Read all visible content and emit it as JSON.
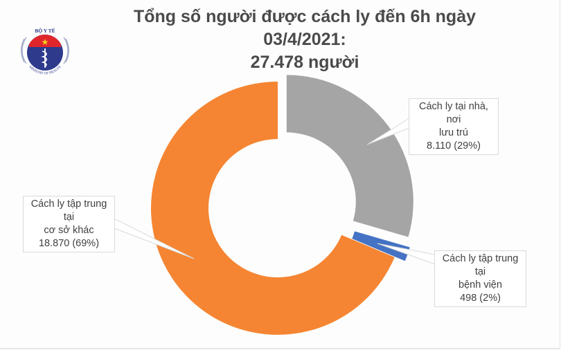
{
  "title": {
    "line1": "Tổng số người được cách ly đến 6h ngày 03/4/2021:",
    "line2": "27.478 người"
  },
  "logo": {
    "top_text": "BỘ Y TẾ",
    "bottom_text": "MINISTRY OF HEALTH",
    "colors": {
      "navy": "#2e3a8c",
      "red": "#e0262b",
      "star": "#f5d020"
    }
  },
  "chart_data": {
    "type": "pie",
    "subtype": "donut",
    "title": "Tổng số người được cách ly đến 6h ngày 03/4/2021: 27.478 người",
    "total": 27478,
    "categories": [
      "Cách ly tại nhà, nơi lưu trú",
      "Cách ly tập trung tại bệnh viện",
      "Cách ly tập trung tại cơ sở khác"
    ],
    "values": [
      8110,
      498,
      18870
    ],
    "percent": [
      29,
      2,
      69
    ],
    "colors": [
      "#a5a5a5",
      "#4472c4",
      "#f58532"
    ],
    "exploded": [
      true,
      true,
      false
    ],
    "legend": "none (data callouts)"
  },
  "callouts": [
    {
      "line1": "Cách ly tại nhà, nơi",
      "line2": "lưu trú",
      "value": "8.110 (29%)"
    },
    {
      "line1": "Cách ly tập trung tại",
      "line2": "bệnh viện",
      "value": "498 (2%)"
    },
    {
      "line1": "Cách ly tập trung tại",
      "line2": "cơ sở khác",
      "value": "18.870 (69%)"
    }
  ]
}
